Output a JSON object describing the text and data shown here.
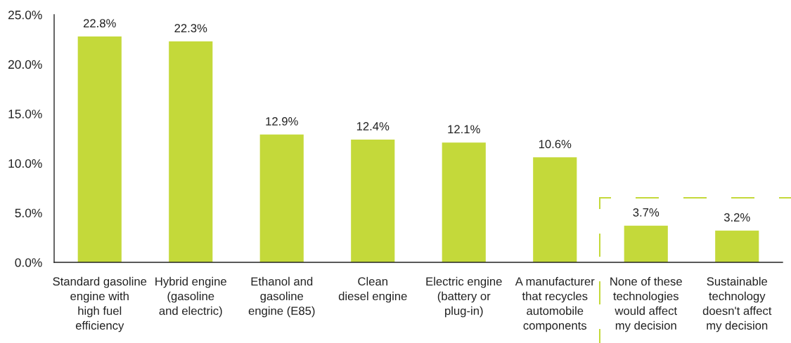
{
  "chart_data": {
    "type": "bar",
    "categories": [
      "Standard gasoline\nengine with\nhigh fuel\nefficiency",
      "Hybrid engine\n(gasoline\nand electric)",
      "Ethanol and\ngasoline\nengine (E85)",
      "Clean\ndiesel engine",
      "Electric engine\n(battery or\nplug-in)",
      "A manufacturer\nthat recycles\nautomobile\ncomponents",
      "None of these\ntechnologies\nwould affect\nmy decision",
      "Sustainable\ntechnology\ndoesn't affect\nmy decision"
    ],
    "values": [
      22.8,
      22.3,
      12.9,
      12.4,
      12.1,
      10.6,
      3.7,
      3.2
    ],
    "value_labels": [
      "22.8%",
      "22.3%",
      "12.9%",
      "12.4%",
      "12.1%",
      "10.6%",
      "3.7%",
      "3.2%"
    ],
    "color": "#c4d93a",
    "ylim": [
      0,
      25
    ],
    "yticks": [
      {
        "value": 0,
        "label": "0.0%"
      },
      {
        "value": 5,
        "label": "5.0%"
      },
      {
        "value": 10,
        "label": "10.0%"
      },
      {
        "value": 15,
        "label": "15.0%"
      },
      {
        "value": 20,
        "label": "20.0%"
      },
      {
        "value": 25,
        "label": "25.0%"
      }
    ],
    "grid": false,
    "legend": false
  }
}
